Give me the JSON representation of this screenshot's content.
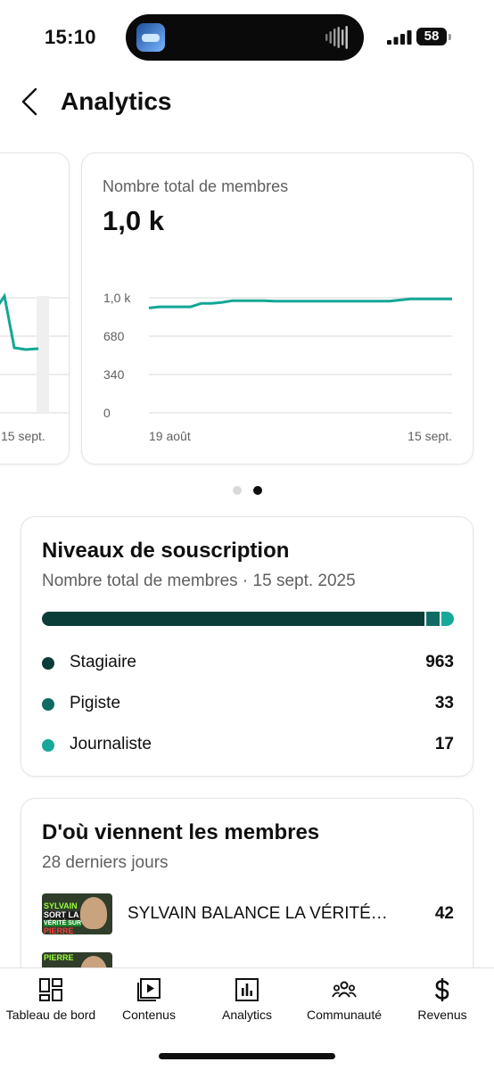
{
  "status_bar": {
    "time": "15:10",
    "battery": "58"
  },
  "header": {
    "title": "Analytics"
  },
  "carousel": {
    "previous_card": {
      "x_label_end": "15 sept."
    },
    "total_members_card": {
      "label": "Nombre total de membres",
      "value": "1,0 k",
      "chart_data": {
        "type": "line",
        "x_tick_labels": [
          "19 août",
          "15 sept."
        ],
        "y_tick_labels": [
          "1,0 k",
          "680",
          "340",
          "0"
        ],
        "ylim": [
          0,
          1020
        ],
        "grid": true,
        "series": [
          {
            "values": [
              930,
              940,
              940,
              940,
              940,
              970,
              970,
              980,
              995,
              995,
              995,
              995,
              990,
              990,
              990,
              990,
              990,
              990,
              990,
              990,
              990,
              990,
              990,
              990,
              1000,
              1010,
              1010,
              1010,
              1010,
              1010
            ]
          }
        ],
        "line_color": "#12a795"
      }
    },
    "active_page": 2,
    "page_count": 2
  },
  "subscription_levels": {
    "title": "Niveaux de souscription",
    "subtitle": "Nombre total de membres · 15 sept. 2025",
    "tiers": [
      {
        "name": "Stagiaire",
        "value": "963",
        "count": 963,
        "color": "#0b3d38"
      },
      {
        "name": "Pigiste",
        "value": "33",
        "count": 33,
        "color": "#0f6b63"
      },
      {
        "name": "Journaliste",
        "value": "17",
        "count": 17,
        "color": "#17a89a"
      }
    ]
  },
  "member_sources": {
    "title": "D'où viennent les membres",
    "subtitle": "28 derniers jours",
    "items": [
      {
        "title": "SYLVAIN BALANCE LA VÉRITÉ…",
        "value": "42",
        "thumb_lines": [
          "SYLVAIN",
          "SORT LA",
          "VÉRITÉ SUR",
          "PIERRE"
        ]
      }
    ]
  },
  "bottom_nav": {
    "items": [
      {
        "label": "Tableau de bord",
        "icon": "dashboard-icon"
      },
      {
        "label": "Contenus",
        "icon": "content-icon"
      },
      {
        "label": "Analytics",
        "icon": "analytics-icon"
      },
      {
        "label": "Communauté",
        "icon": "community-icon"
      },
      {
        "label": "Revenus",
        "icon": "dollar-icon"
      }
    ]
  }
}
